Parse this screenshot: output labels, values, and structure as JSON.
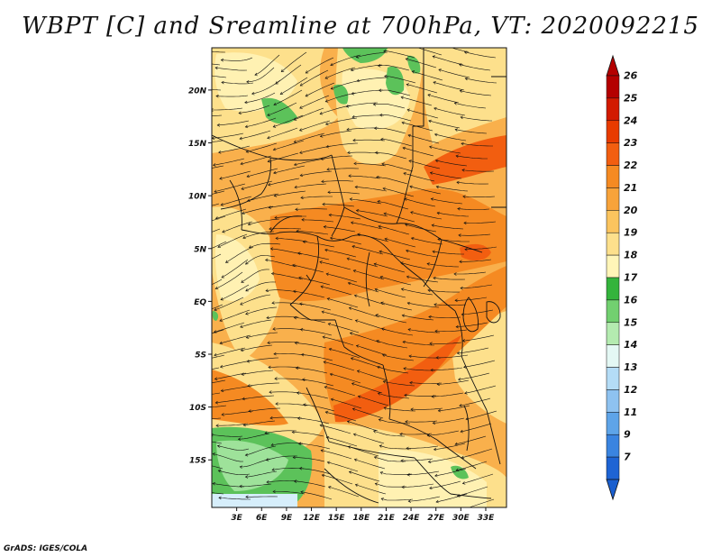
{
  "title": "WBPT [C] and Sreamline at 700hPa, VT: 2020092215",
  "credit": "GrADS: IGES/COLA",
  "map": {
    "lon_range": [
      0,
      35.5
    ],
    "lat_range": [
      -19.5,
      24
    ],
    "lat_ticks": [
      {
        "value": 20,
        "label": "20N"
      },
      {
        "value": 15,
        "label": "15N"
      },
      {
        "value": 10,
        "label": "10N"
      },
      {
        "value": 5,
        "label": "5N"
      },
      {
        "value": 0,
        "label": "EQ"
      },
      {
        "value": -5,
        "label": "5S"
      },
      {
        "value": -10,
        "label": "10S"
      },
      {
        "value": -15,
        "label": "15S"
      }
    ],
    "lon_ticks": [
      {
        "value": 3,
        "label": "3E"
      },
      {
        "value": 6,
        "label": "6E"
      },
      {
        "value": 9,
        "label": "9E"
      },
      {
        "value": 12,
        "label": "12E"
      },
      {
        "value": 15,
        "label": "15E"
      },
      {
        "value": 18,
        "label": "18E"
      },
      {
        "value": 21,
        "label": "21E"
      },
      {
        "value": 24,
        "label": "24E"
      },
      {
        "value": 27,
        "label": "27E"
      },
      {
        "value": 30,
        "label": "30E"
      },
      {
        "value": 33,
        "label": "33E"
      }
    ]
  },
  "colorbar": {
    "levels": [
      {
        "label": "26",
        "color": "#b40000"
      },
      {
        "label": "25",
        "color": "#d21a00"
      },
      {
        "label": "24",
        "color": "#e83b00"
      },
      {
        "label": "23",
        "color": "#f25e10"
      },
      {
        "label": "22",
        "color": "#f58a22"
      },
      {
        "label": "21",
        "color": "#f8a33a"
      },
      {
        "label": "20",
        "color": "#fbc45e"
      },
      {
        "label": "19",
        "color": "#fde08c"
      },
      {
        "label": "18",
        "color": "#fff5b8"
      },
      {
        "label": "17",
        "color": "#34b43c"
      },
      {
        "label": "16",
        "color": "#72d070"
      },
      {
        "label": "15",
        "color": "#b4ebb0"
      },
      {
        "label": "14",
        "color": "#e4f8f4"
      },
      {
        "label": "13",
        "color": "#b4dcf6"
      },
      {
        "label": "12",
        "color": "#8ec2f0"
      },
      {
        "label": "11",
        "color": "#5ea4e8"
      },
      {
        "label": "9",
        "color": "#3a84e0"
      },
      {
        "label": "7",
        "color": "#1e64d4"
      }
    ],
    "bottom_color": "#1a5fcf"
  },
  "colors": {
    "base": "#f9b04c",
    "warm": "#f58a22",
    "hot": "#f25e10",
    "pale": "#fde08c",
    "paler": "#fff1b2",
    "green": "#5cc25a",
    "light_green": "#9ee29a",
    "light_blue": "#d6eefb",
    "line": "#111111"
  }
}
